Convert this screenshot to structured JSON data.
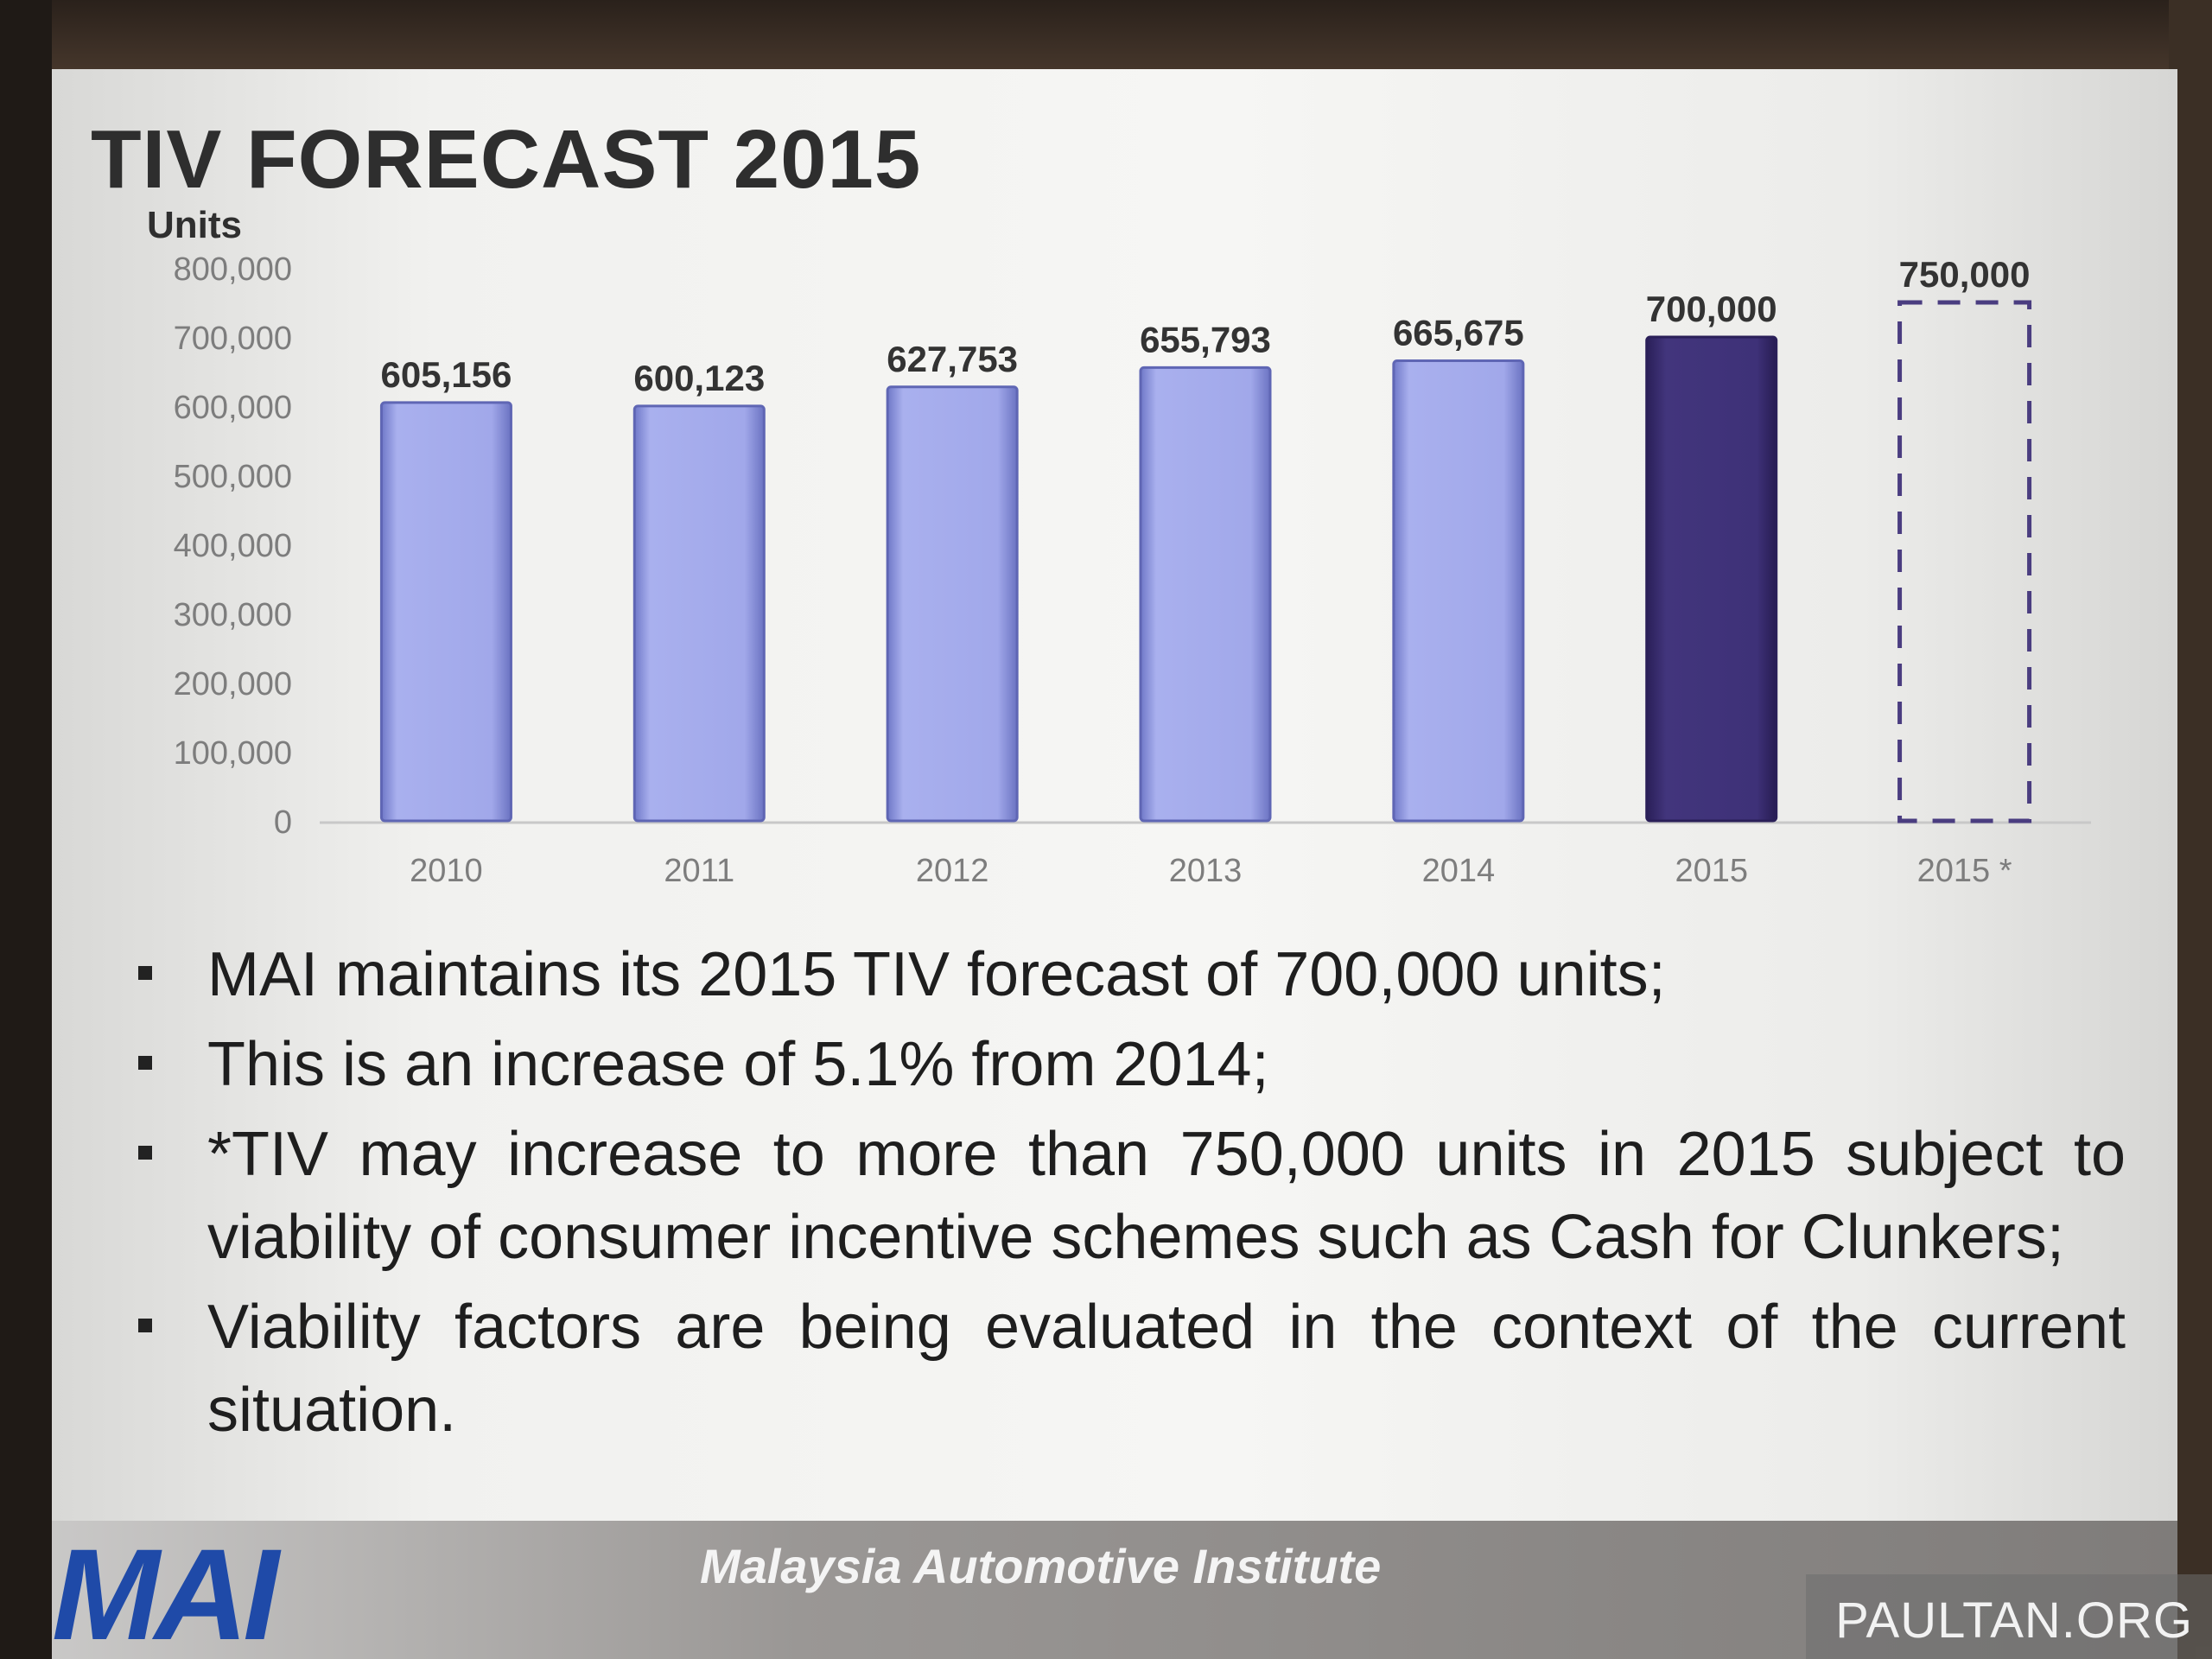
{
  "slide": {
    "title": "TIV FORECAST 2015",
    "footer": "Malaysia Automotive Institute",
    "logo": "MAI",
    "watermark": "PAULTAN.ORG"
  },
  "bullets": [
    "MAI maintains its 2015 TIV forecast of 700,000 units;",
    "This is an increase of 5.1% from 2014;",
    "*TIV may increase to more than 750,000 units in 2015 subject to viability of consumer incentive schemes such as Cash for Clunkers;",
    "Viability factors are being evaluated in the context of the current situation."
  ],
  "chart_data": {
    "type": "bar",
    "title": "",
    "xlabel": "",
    "ylabel": "Units",
    "categories": [
      "2010",
      "2011",
      "2012",
      "2013",
      "2014",
      "2015",
      "2015 *"
    ],
    "values": [
      605156,
      600123,
      627753,
      655793,
      665675,
      700000,
      750000
    ],
    "data_labels": [
      "605,156",
      "600,123",
      "627,753",
      "655,793",
      "665,675",
      "700,000",
      "750,000"
    ],
    "styles": [
      "actual",
      "actual",
      "actual",
      "actual",
      "actual",
      "forecast",
      "dashed-outline"
    ],
    "ylim": [
      0,
      800000
    ],
    "yticks": [
      "0",
      "100,000",
      "200,000",
      "300,000",
      "400,000",
      "500,000",
      "600,000",
      "700,000",
      "800,000"
    ],
    "grid": false,
    "legend": "none",
    "colors": {
      "actual": "#9ea6e8",
      "forecast": "#3d2f74",
      "outline": "#4a3d80",
      "axis_text": "#7d7d7d",
      "label_text": "#333333"
    }
  }
}
